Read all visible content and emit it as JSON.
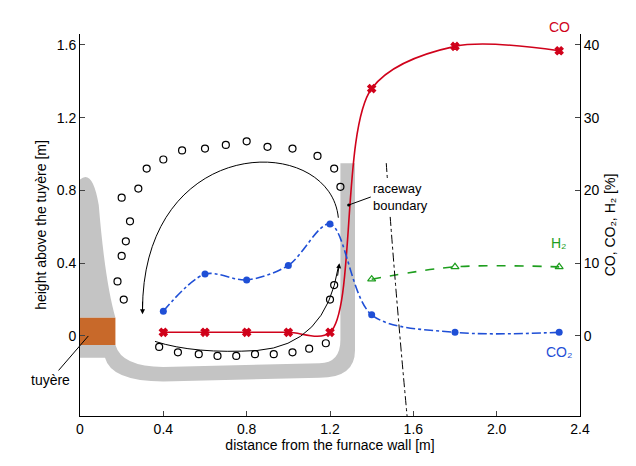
{
  "chart_data": {
    "type": "line",
    "xlabel": "distance from the furnace wall [m]",
    "ylabel": "height above the tuyère [m]",
    "y2label": "CO, CO₂, H₂ [%]",
    "annotations": [
      "raceway boundary",
      "tuyère"
    ],
    "xlim": [
      0,
      2.4
    ],
    "xticks": [
      0,
      0.4,
      0.8,
      1.2,
      1.6,
      {
        "value": 2,
        "label": "2.0"
      },
      2.4
    ],
    "ylim": [
      -0.44,
      1.66
    ],
    "yticks": [
      0,
      0.4,
      0.8,
      1.2,
      1.6
    ],
    "y2lim": [
      -11,
      41.5
    ],
    "y2ticks": [
      0,
      10,
      20,
      30,
      40
    ],
    "grid": false,
    "series": [
      {
        "name": "CO",
        "color": "#d0021b",
        "marker": "x",
        "line_style": "solid",
        "axis": "y2",
        "type": "line",
        "x": [
          0.4,
          0.6,
          0.8,
          1.0,
          1.2,
          1.4,
          1.8,
          2.3
        ],
        "values": [
          0.5,
          0.5,
          0.5,
          0.5,
          0.5,
          34,
          39.8,
          39.2
        ]
      },
      {
        "name": "CO₂",
        "color": "#1f4fd6",
        "marker": "circle",
        "line_style": "dashdot",
        "axis": "y2",
        "type": "line",
        "x": [
          0.4,
          0.6,
          0.8,
          1.0,
          1.2,
          1.4,
          1.8,
          2.3
        ],
        "values": [
          3.4,
          8.5,
          7.7,
          9.7,
          15.4,
          2.9,
          0.5,
          0.5
        ]
      },
      {
        "name": "H₂",
        "color": "#1e9e1e",
        "marker": "triangle-up-open",
        "line_style": "dash",
        "axis": "y2",
        "type": "line",
        "x": [
          1.4,
          1.8,
          2.3
        ],
        "values": [
          7.8,
          9.5,
          9.5
        ]
      },
      {
        "color": "#000000",
        "marker": "circle-open",
        "axis": "y",
        "type": "scatter",
        "x": [
          0.38,
          0.47,
          0.57,
          0.66,
          0.75,
          0.84,
          0.93,
          1.02,
          1.1,
          1.18,
          1.2,
          1.22,
          1.25,
          1.22,
          1.14,
          1.02,
          0.9,
          0.8,
          0.7,
          0.6,
          0.49,
          0.4,
          0.32,
          0.28,
          0.2,
          0.24,
          0.22,
          0.2,
          0.18,
          0.21
        ],
        "values": [
          -0.06,
          -0.09,
          -0.1,
          -0.11,
          -0.11,
          -0.1,
          -0.1,
          -0.09,
          -0.07,
          -0.04,
          0.2,
          0.28,
          0.82,
          0.92,
          0.99,
          1.03,
          1.04,
          1.07,
          1.05,
          1.03,
          1.02,
          0.97,
          0.92,
          0.81,
          0.76,
          0.63,
          0.52,
          0.44,
          0.3,
          0.2
        ]
      }
    ]
  }
}
